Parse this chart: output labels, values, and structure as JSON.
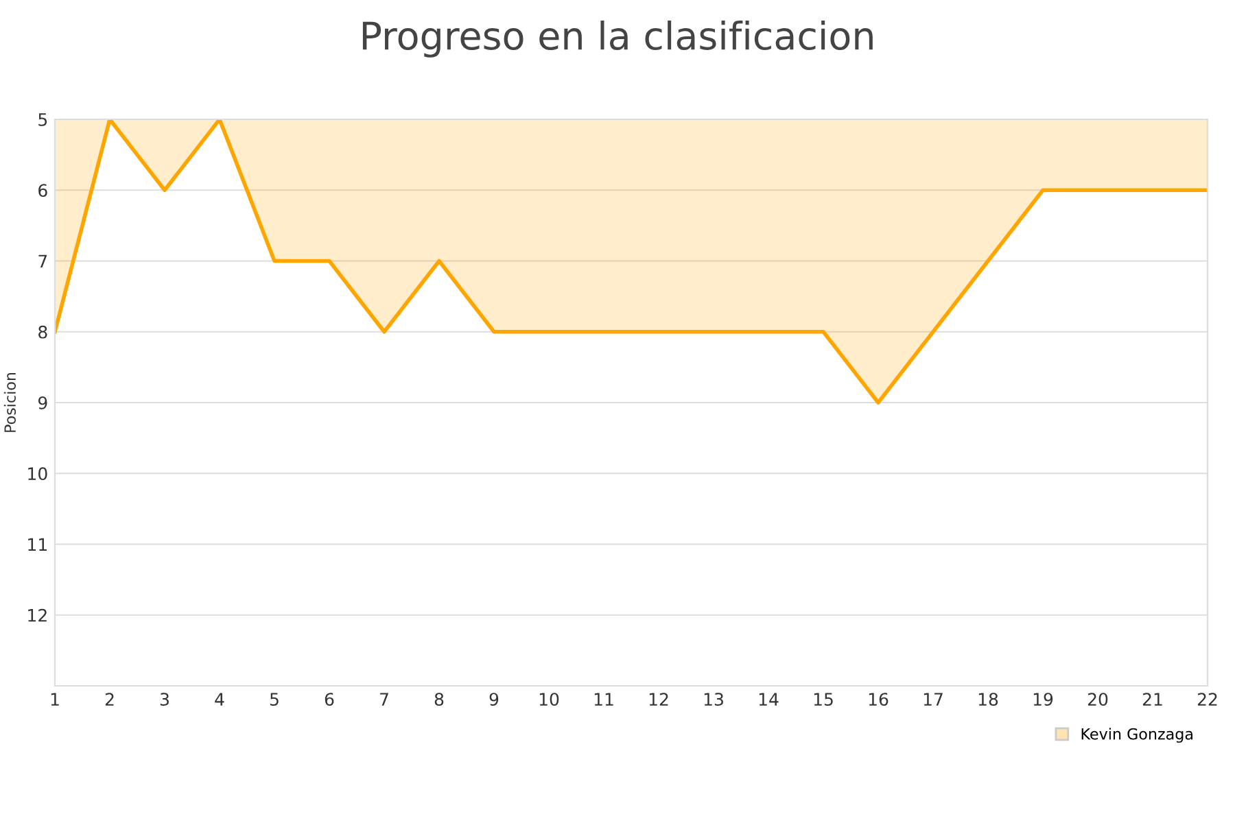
{
  "chart_data": {
    "type": "area",
    "title": "Progreso en la clasificacion",
    "ylabel": "Posicion",
    "x": [
      1,
      2,
      3,
      4,
      5,
      6,
      7,
      8,
      9,
      10,
      11,
      12,
      13,
      14,
      15,
      16,
      17,
      18,
      19,
      20,
      21,
      22
    ],
    "series": [
      {
        "name": "Kevin Gonzaga",
        "color": "#ffa500",
        "values": [
          8,
          5,
          6,
          5,
          7,
          7,
          8,
          7,
          8,
          8,
          8,
          8,
          8,
          8,
          8,
          9,
          8,
          7,
          6,
          6,
          6,
          6
        ]
      }
    ],
    "xlim": [
      1,
      22
    ],
    "xticks": [
      1,
      2,
      3,
      4,
      5,
      6,
      7,
      8,
      9,
      10,
      11,
      12,
      13,
      14,
      15,
      16,
      17,
      18,
      19,
      20,
      21,
      22
    ],
    "ylim": [
      13,
      5
    ],
    "yticks": [
      5,
      6,
      7,
      8,
      9,
      10,
      11,
      12
    ],
    "grid": "y",
    "legend": "bottom right"
  }
}
